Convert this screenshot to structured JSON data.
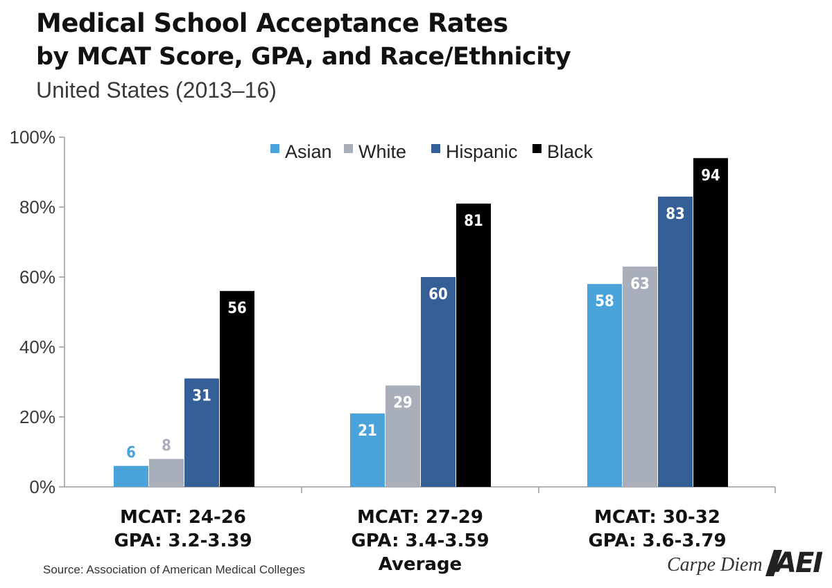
{
  "title_line1": "Medical School Acceptance Rates",
  "title_line2": "by MCAT Score, GPA, and Race/Ethnicity",
  "subtitle": "United States (2013–16)",
  "source": "Source: Association of American Medical Colleges",
  "brand": "Carpe Diem",
  "logo_text": "AEI",
  "colors": {
    "Asian": "#4aa3d9",
    "White": "#a8afbb",
    "Hispanic": "#355f97",
    "Black": "#000000",
    "axis": "#9a9a9a"
  },
  "chart_data": {
    "type": "bar",
    "title": "Medical School Acceptance Rates by MCAT Score, GPA, and Race/Ethnicity",
    "subtitle": "United States (2013–16)",
    "xlabel": "",
    "ylabel": "",
    "ylim": [
      0,
      100
    ],
    "yticks": [
      "0%",
      "20%",
      "40%",
      "60%",
      "80%",
      "100%"
    ],
    "grid": false,
    "legend_position": "top-center",
    "categories": [
      {
        "lines": [
          "MCAT: 24-26",
          "GPA: 3.2-3.39"
        ]
      },
      {
        "lines": [
          "MCAT: 27-29",
          "GPA: 3.4-3.59",
          "Average"
        ]
      },
      {
        "lines": [
          "MCAT: 30-32",
          "GPA: 3.6-3.79"
        ]
      }
    ],
    "series": [
      {
        "name": "Asian",
        "values": [
          6,
          21,
          58
        ]
      },
      {
        "name": "White",
        "values": [
          8,
          29,
          63
        ]
      },
      {
        "name": "Hispanic",
        "values": [
          31,
          60,
          83
        ]
      },
      {
        "name": "Black",
        "values": [
          56,
          81,
          94
        ]
      }
    ]
  }
}
